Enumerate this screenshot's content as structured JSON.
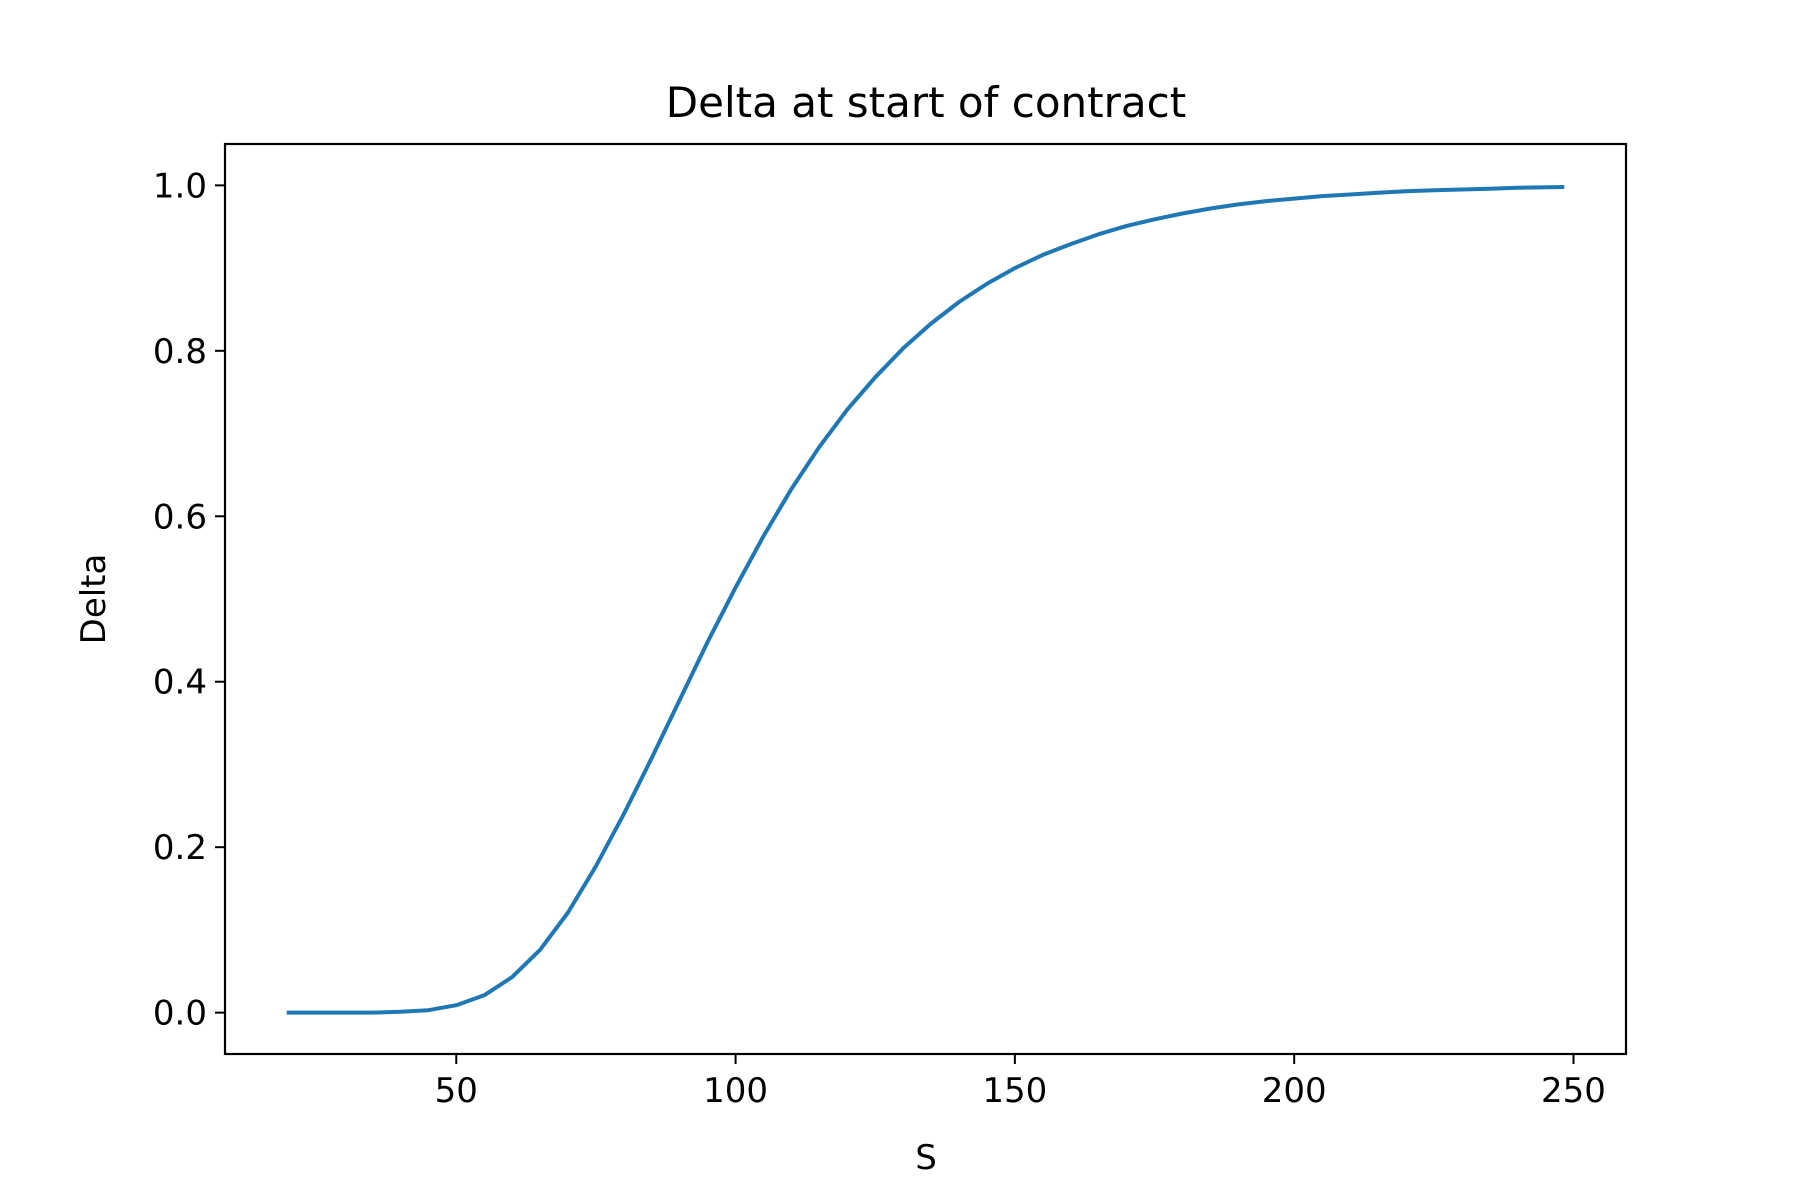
{
  "chart_data": {
    "type": "line",
    "title": "Delta at start of contract",
    "xlabel": "S",
    "ylabel": "Delta",
    "xlim": [
      8.6,
      259.4
    ],
    "ylim": [
      -0.05,
      1.05
    ],
    "xticks": [
      50,
      100,
      150,
      200,
      250
    ],
    "xtick_labels": [
      "50",
      "100",
      "150",
      "200",
      "250"
    ],
    "yticks": [
      0.0,
      0.2,
      0.4,
      0.6,
      0.8,
      1.0
    ],
    "ytick_labels": [
      "0.0",
      "0.2",
      "0.4",
      "0.6",
      "0.8",
      "1.0"
    ],
    "grid": false,
    "line_color": "#1f77b4",
    "series": [
      {
        "x": [
          20,
          25,
          30,
          35,
          40,
          45,
          50,
          55,
          60,
          65,
          70,
          75,
          80,
          85,
          90,
          95,
          100,
          105,
          110,
          115,
          120,
          125,
          130,
          135,
          140,
          145,
          150,
          155,
          160,
          165,
          170,
          175,
          180,
          185,
          190,
          195,
          200,
          205,
          210,
          215,
          220,
          225,
          230,
          235,
          240,
          248
        ],
        "y": [
          0.0,
          0.0,
          0.0,
          0.0,
          0.001,
          0.003,
          0.009,
          0.021,
          0.043,
          0.076,
          0.121,
          0.177,
          0.24,
          0.308,
          0.378,
          0.448,
          0.514,
          0.576,
          0.633,
          0.684,
          0.729,
          0.768,
          0.803,
          0.833,
          0.859,
          0.881,
          0.9,
          0.916,
          0.929,
          0.941,
          0.951,
          0.959,
          0.966,
          0.972,
          0.977,
          0.981,
          0.984,
          0.987,
          0.989,
          0.991,
          0.993,
          0.994,
          0.995,
          0.996,
          0.997,
          0.998
        ]
      }
    ]
  }
}
